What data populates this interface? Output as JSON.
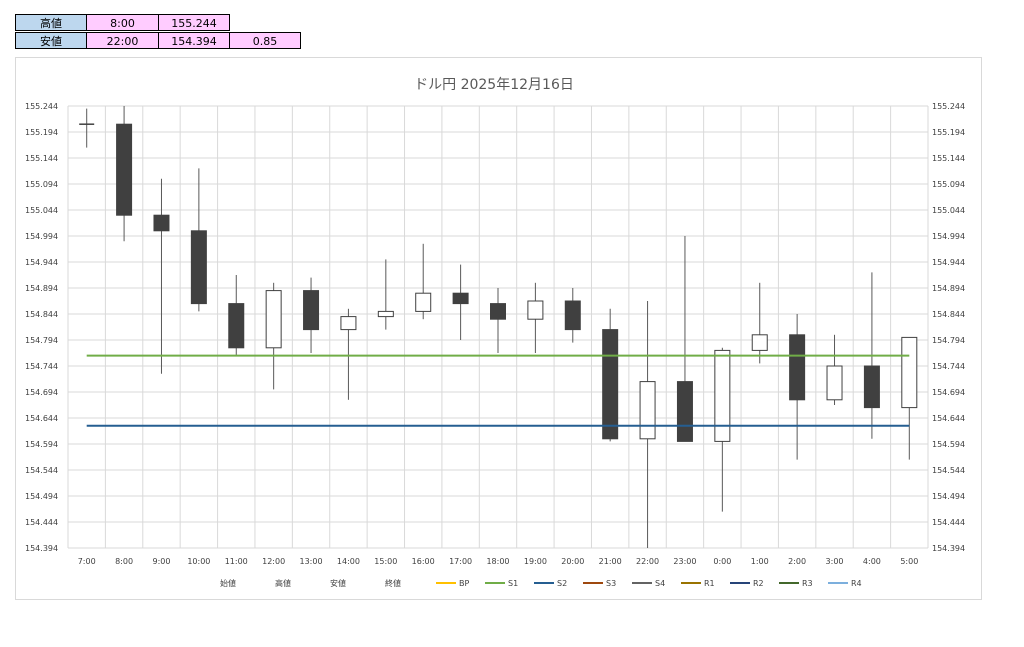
{
  "summary_table": {
    "rows": [
      {
        "label": "高値",
        "time": "8:00",
        "value": "155.244",
        "extra": ""
      },
      {
        "label": "安値",
        "time": "22:00",
        "value": "154.394",
        "extra": "0.85"
      }
    ]
  },
  "chart_data": {
    "type": "candlestick",
    "title": "ドル円 2025年12月16日",
    "ylim": [
      154.394,
      155.244
    ],
    "y_ticks": [
      "155.244",
      "155.194",
      "155.144",
      "155.094",
      "155.044",
      "154.994",
      "154.944",
      "154.894",
      "154.844",
      "154.794",
      "154.744",
      "154.694",
      "154.644",
      "154.594",
      "154.544",
      "154.494",
      "154.444",
      "154.394"
    ],
    "categories": [
      "7:00",
      "8:00",
      "9:00",
      "10:00",
      "11:00",
      "12:00",
      "13:00",
      "14:00",
      "15:00",
      "16:00",
      "17:00",
      "18:00",
      "19:00",
      "20:00",
      "21:00",
      "22:00",
      "23:00",
      "0:00",
      "1:00",
      "2:00",
      "3:00",
      "4:00",
      "5:00"
    ],
    "ohlc": [
      {
        "open": 155.209,
        "high": 155.239,
        "low": 155.164,
        "close": 155.209
      },
      {
        "open": 155.209,
        "high": 155.244,
        "low": 154.984,
        "close": 155.034
      },
      {
        "open": 155.034,
        "high": 155.104,
        "low": 154.729,
        "close": 155.004
      },
      {
        "open": 155.004,
        "high": 155.124,
        "low": 154.849,
        "close": 154.864
      },
      {
        "open": 154.864,
        "high": 154.919,
        "low": 154.764,
        "close": 154.779
      },
      {
        "open": 154.779,
        "high": 154.904,
        "low": 154.699,
        "close": 154.889
      },
      {
        "open": 154.889,
        "high": 154.914,
        "low": 154.769,
        "close": 154.814
      },
      {
        "open": 154.814,
        "high": 154.854,
        "low": 154.679,
        "close": 154.839
      },
      {
        "open": 154.839,
        "high": 154.949,
        "low": 154.814,
        "close": 154.849
      },
      {
        "open": 154.849,
        "high": 154.979,
        "low": 154.834,
        "close": 154.884
      },
      {
        "open": 154.884,
        "high": 154.939,
        "low": 154.794,
        "close": 154.864
      },
      {
        "open": 154.864,
        "high": 154.894,
        "low": 154.769,
        "close": 154.834
      },
      {
        "open": 154.834,
        "high": 154.904,
        "low": 154.769,
        "close": 154.869
      },
      {
        "open": 154.869,
        "high": 154.894,
        "low": 154.789,
        "close": 154.814
      },
      {
        "open": 154.814,
        "high": 154.854,
        "low": 154.599,
        "close": 154.604
      },
      {
        "open": 154.604,
        "high": 154.869,
        "low": 154.394,
        "close": 154.714
      },
      {
        "open": 154.714,
        "high": 154.994,
        "low": 154.599,
        "close": 154.599
      },
      {
        "open": 154.599,
        "high": 154.779,
        "low": 154.464,
        "close": 154.774
      },
      {
        "open": 154.774,
        "high": 154.904,
        "low": 154.749,
        "close": 154.804
      },
      {
        "open": 154.804,
        "high": 154.844,
        "low": 154.564,
        "close": 154.679
      },
      {
        "open": 154.679,
        "high": 154.804,
        "low": 154.669,
        "close": 154.744
      },
      {
        "open": 154.744,
        "high": 154.924,
        "low": 154.604,
        "close": 154.664
      },
      {
        "open": 154.664,
        "high": 154.799,
        "low": 154.564,
        "close": 154.799
      }
    ],
    "lines": [
      {
        "name": "S1",
        "value": 154.764,
        "color": "#70ad47"
      },
      {
        "name": "S2",
        "value": 154.629,
        "color": "#255e91"
      }
    ],
    "legend": [
      {
        "name": "始値",
        "color": ""
      },
      {
        "name": "高値",
        "color": ""
      },
      {
        "name": "安値",
        "color": ""
      },
      {
        "name": "終値",
        "color": ""
      },
      {
        "name": "BP",
        "color": "#ffc000"
      },
      {
        "name": "S1",
        "color": "#70ad47"
      },
      {
        "name": "S2",
        "color": "#255e91"
      },
      {
        "name": "S3",
        "color": "#9e480e"
      },
      {
        "name": "S4",
        "color": "#636363"
      },
      {
        "name": "R1",
        "color": "#997300"
      },
      {
        "name": "R2",
        "color": "#264478"
      },
      {
        "name": "R3",
        "color": "#43682b"
      },
      {
        "name": "R4",
        "color": "#7cafdd"
      }
    ],
    "colors": {
      "bear": "#404040",
      "bull": "#ffffff",
      "grid": "#d9d9d9",
      "wick": "#595959"
    }
  }
}
